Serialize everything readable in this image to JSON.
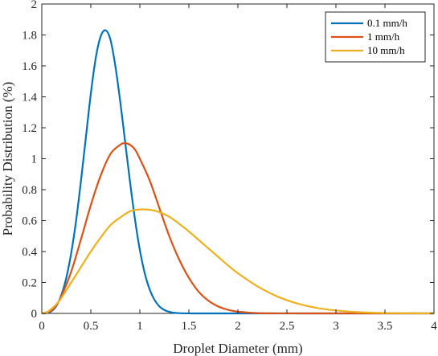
{
  "chart_data": {
    "type": "line",
    "title": "",
    "xlabel": "Droplet Diameter (mm)",
    "ylabel": "Probability Distribution (%)",
    "xlim": [
      0,
      4
    ],
    "ylim": [
      0,
      2
    ],
    "xticks": [
      0,
      0.5,
      1,
      1.5,
      2,
      2.5,
      3,
      3.5,
      4
    ],
    "xtick_labels": [
      "0",
      "0.5",
      "1",
      "1.5",
      "2",
      "2.5",
      "3",
      "3.5",
      "4"
    ],
    "yticks": [
      0,
      0.2,
      0.4,
      0.6,
      0.8,
      1,
      1.2,
      1.4,
      1.6,
      1.8,
      2
    ],
    "ytick_labels": [
      "0",
      "0.2",
      "0.4",
      "0.6",
      "0.8",
      "1",
      "1.2",
      "1.4",
      "1.6",
      "1.8",
      "2"
    ],
    "grid": false,
    "legend_position": "top-right",
    "series": [
      {
        "name": "0.1 mm/h",
        "color": "#0072BD",
        "x": [
          0,
          0.05,
          0.1,
          0.15,
          0.2,
          0.25,
          0.3,
          0.35,
          0.4,
          0.45,
          0.5,
          0.55,
          0.6,
          0.65,
          0.7,
          0.75,
          0.8,
          0.85,
          0.9,
          0.95,
          1.0,
          1.05,
          1.1,
          1.15,
          1.2,
          1.25,
          1.3,
          1.35,
          1.4,
          1.5,
          1.6,
          1.8,
          2.0,
          3.0,
          4.0
        ],
        "y": [
          0,
          0.002,
          0.015,
          0.05,
          0.12,
          0.23,
          0.39,
          0.6,
          0.86,
          1.14,
          1.42,
          1.65,
          1.79,
          1.83,
          1.77,
          1.6,
          1.37,
          1.11,
          0.85,
          0.61,
          0.41,
          0.26,
          0.155,
          0.087,
          0.045,
          0.022,
          0.01,
          0.004,
          0.0016,
          0.0002,
          0,
          0,
          0,
          0,
          0
        ]
      },
      {
        "name": "1 mm/h",
        "color": "#D95319",
        "x": [
          0,
          0.05,
          0.1,
          0.15,
          0.2,
          0.3,
          0.4,
          0.5,
          0.6,
          0.7,
          0.8,
          0.85,
          0.9,
          0.95,
          1.0,
          1.1,
          1.2,
          1.3,
          1.4,
          1.5,
          1.6,
          1.7,
          1.8,
          1.9,
          2.0,
          2.2,
          2.5,
          3.0,
          3.5,
          4.0
        ],
        "y": [
          0,
          0.004,
          0.02,
          0.055,
          0.11,
          0.27,
          0.48,
          0.7,
          0.89,
          1.03,
          1.09,
          1.1,
          1.09,
          1.06,
          1.0,
          0.86,
          0.68,
          0.5,
          0.35,
          0.23,
          0.14,
          0.082,
          0.045,
          0.023,
          0.011,
          0.002,
          0.0002,
          0,
          0,
          0
        ]
      },
      {
        "name": "10 mm/h",
        "color": "#EDB120",
        "x": [
          0,
          0.05,
          0.1,
          0.15,
          0.2,
          0.3,
          0.4,
          0.5,
          0.6,
          0.7,
          0.8,
          0.9,
          1.0,
          1.1,
          1.2,
          1.3,
          1.4,
          1.5,
          1.6,
          1.7,
          1.8,
          1.9,
          2.0,
          2.2,
          2.4,
          2.6,
          2.8,
          3.0,
          3.2,
          3.4,
          3.6,
          3.8,
          4.0
        ],
        "y": [
          0,
          0.008,
          0.03,
          0.06,
          0.1,
          0.2,
          0.3,
          0.4,
          0.49,
          0.57,
          0.62,
          0.66,
          0.672,
          0.67,
          0.655,
          0.625,
          0.58,
          0.53,
          0.475,
          0.42,
          0.365,
          0.31,
          0.26,
          0.175,
          0.11,
          0.065,
          0.036,
          0.019,
          0.009,
          0.004,
          0.0017,
          0.0006,
          0.0002
        ]
      }
    ]
  }
}
